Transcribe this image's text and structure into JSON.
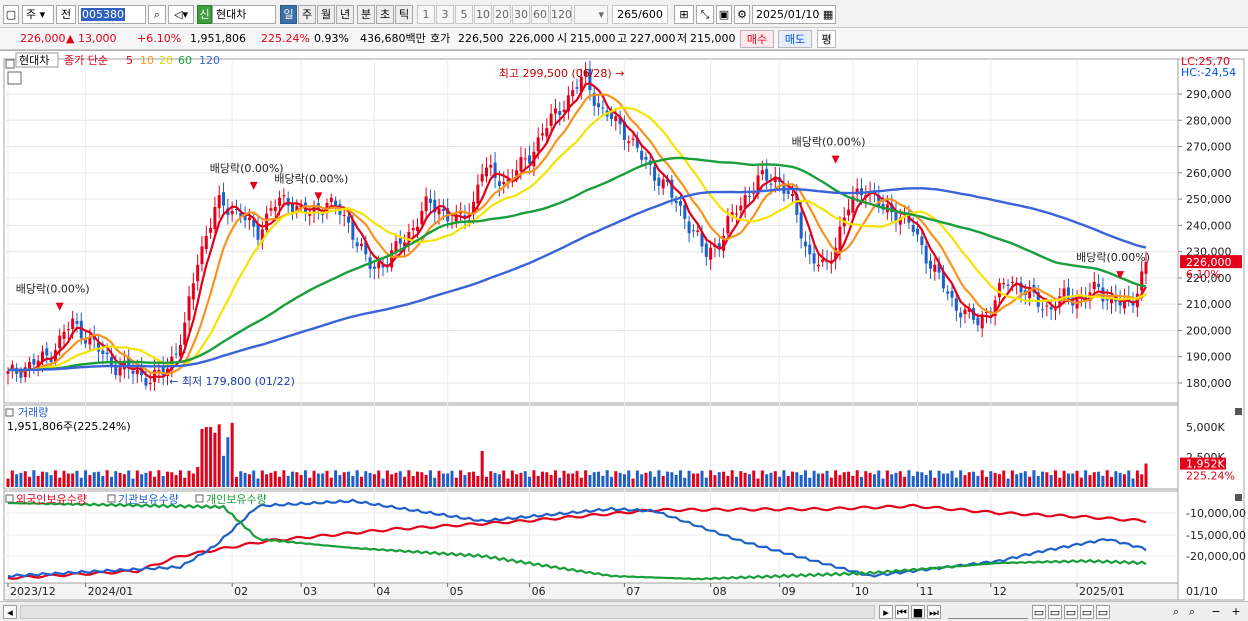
{
  "toolbar": {
    "period_select": "주",
    "prev_label": "전",
    "stock_code": "005380",
    "stock_tag": "신",
    "stock_name": "현대차",
    "periods": [
      "일",
      "주",
      "월",
      "년",
      "분",
      "초",
      "틱"
    ],
    "active_period": "일",
    "intervals": [
      "1",
      "3",
      "5",
      "10",
      "20",
      "30",
      "60",
      "120"
    ],
    "count": "265",
    "count_total": "/600",
    "date": "2025/01/10"
  },
  "price_bar": {
    "price": "226,000",
    "change": "▲ 13,000",
    "change_pct": "+6.10%",
    "volume": "1,951,806",
    "volume_ratio": "225.24%",
    "turnover": "0.93%",
    "amount": "436,680백만",
    "quote_label": "호가",
    "ask": "226,500",
    "bid": "226,000",
    "open_label": "시",
    "open": "215,000",
    "high_label": "고",
    "high": "227,000",
    "low_label": "저",
    "low": "215,000",
    "buy_label": "매수",
    "sell_label": "매도",
    "eval_label": "평"
  },
  "price_panel": {
    "stock_label": "현대차",
    "legend_prefix": "종가 단순",
    "ma_labels": [
      "5",
      "10",
      "20",
      "60",
      "120"
    ],
    "lc": "LC:25,70",
    "hc": "HC:-24,54",
    "y_ticks": [
      "290,000",
      "280,000",
      "270,000",
      "260,000",
      "250,000",
      "240,000",
      "230,000",
      "220,000",
      "210,000",
      "200,000",
      "190,000",
      "180,000"
    ],
    "current_price_tag": "226,000",
    "current_pct_tag": "6.10%",
    "annotations": {
      "high": "최고 299,500 (06/28)",
      "low": "최저 179,800 (01/22)",
      "dividend": "배당락(0.00%)"
    }
  },
  "volume_panel": {
    "title": "거래량",
    "value": "1,951,806주(225.24%)",
    "y_tick": "5,000K",
    "y_tick2": "2,500K",
    "current_tag": "1,952K",
    "current_pct": "225.24%"
  },
  "holding_panel": {
    "series": [
      "외국인보유수량",
      "기관보유수량",
      "개인보유수량"
    ],
    "y_ticks": [
      "-10,000,00",
      "-15,000,00",
      "-20,000,00"
    ]
  },
  "x_axis": {
    "labels": [
      "2023/12",
      "2024/01",
      "02",
      "03",
      "04",
      "05",
      "06",
      "07",
      "08",
      "09",
      "10",
      "11",
      "12",
      "2025/01"
    ],
    "right_label": "01/10"
  },
  "colors": {
    "ma5": "#e2001a",
    "ma10": "#f7931e",
    "ma20": "#f5e400",
    "ma60": "#1a9e3a",
    "ma120": "#3a63d8",
    "up": "#e2001a",
    "down": "#1f5fc8"
  }
}
